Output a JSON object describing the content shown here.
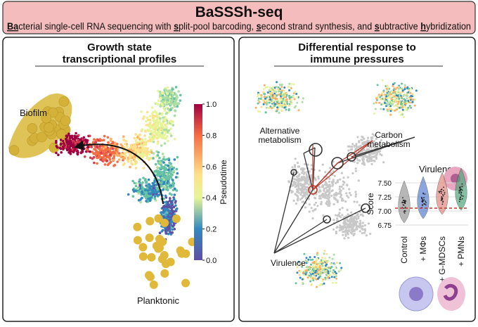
{
  "header": {
    "title": "BaSSSh-seq",
    "subtitle_parts": [
      {
        "text": "Ba",
        "underline": true
      },
      {
        "text": "cterial single-cell RNA sequencing with ",
        "underline": false
      },
      {
        "text": "s",
        "underline": true
      },
      {
        "text": "plit-pool barcoding, ",
        "underline": false
      },
      {
        "text": "s",
        "underline": true
      },
      {
        "text": "econd strand synthesis, and ",
        "underline": false
      },
      {
        "text": "s",
        "underline": true
      },
      {
        "text": "ubtractive ",
        "underline": false
      },
      {
        "text": "h",
        "underline": true
      },
      {
        "text": "ybridization",
        "underline": false
      }
    ]
  },
  "left_panel": {
    "title_lines": [
      "Growth state",
      "transcriptional profiles"
    ],
    "biofilm_label": "Biofilm",
    "planktonic_label": "Planktonic",
    "colorbar": {
      "label": "Pseudotime",
      "ticks": [
        "1.0",
        "0.8",
        "0.6",
        "0.4",
        "0.2",
        "0.0"
      ]
    }
  },
  "right_panel": {
    "title_lines": [
      "Differential response to",
      "immune pressures"
    ],
    "alternative_label": [
      "Alternative",
      "metabolism"
    ],
    "carbon_label": [
      "Carbon",
      "metabolism"
    ],
    "virulence_label": "Virulence",
    "violin": {
      "title": "Virulence",
      "y_label": "Score",
      "y_ticks": [
        "7.50",
        "7.25",
        "7.00",
        "6.75"
      ],
      "groups": [
        "Control",
        "+ MΦs",
        "+ G-MDSCs",
        "+ PMNs"
      ]
    }
  }
}
